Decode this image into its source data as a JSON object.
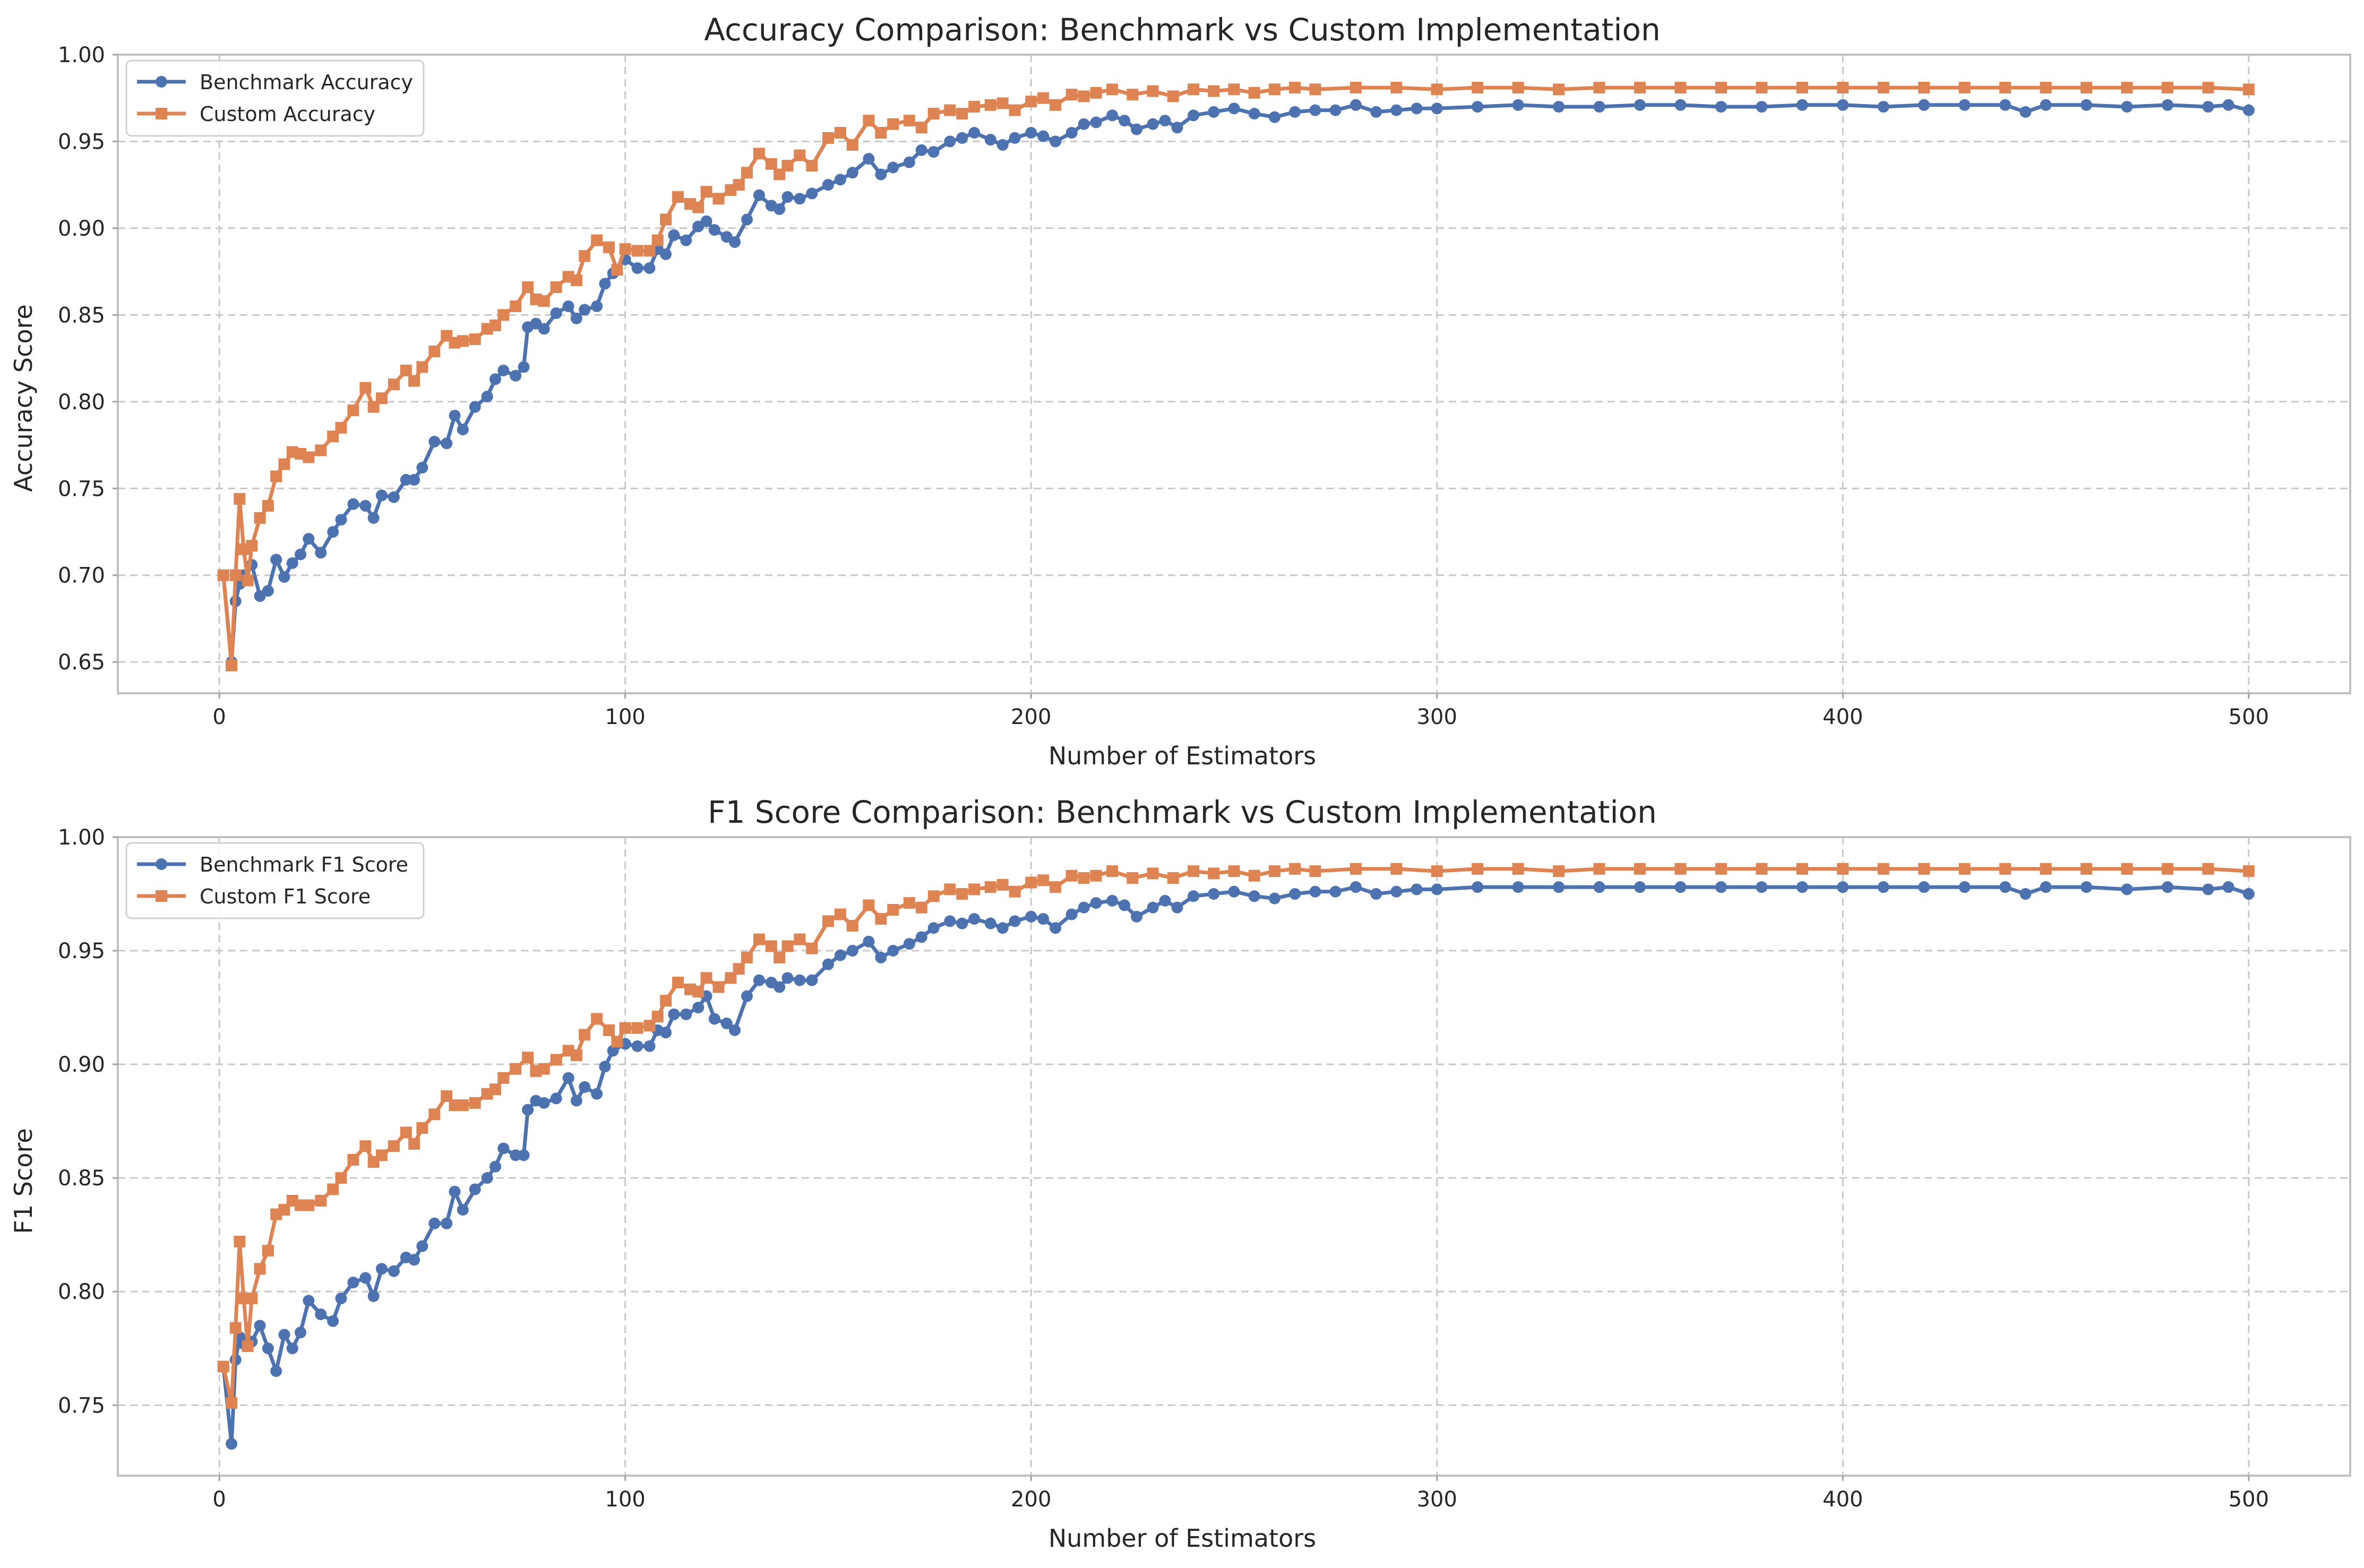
{
  "colors": {
    "benchmark": "#4c72b0",
    "custom": "#dd8452"
  },
  "chart_data": [
    {
      "type": "line",
      "title": "Accuracy Comparison: Benchmark vs Custom Implementation",
      "xlabel": "Number of Estimators",
      "ylabel": "Accuracy Score",
      "xlim": [
        -25,
        525
      ],
      "ylim": [
        0.632,
        1.0
      ],
      "xticks": [
        0,
        100,
        200,
        300,
        400,
        500
      ],
      "xtick_labels": [
        "0",
        "100",
        "200",
        "300",
        "400",
        "500"
      ],
      "yticks": [
        0.65,
        0.7,
        0.75,
        0.8,
        0.85,
        0.9,
        0.95,
        1.0
      ],
      "ytick_labels": [
        "0.65",
        "0.70",
        "0.75",
        "0.80",
        "0.85",
        "0.90",
        "0.95",
        "1.00"
      ],
      "grid": true,
      "legend_position": "top-left",
      "series": [
        {
          "name": "Benchmark Accuracy",
          "marker": "circle",
          "color_key": "benchmark",
          "x": [
            1,
            3,
            4,
            5,
            6,
            8,
            10,
            12,
            14,
            16,
            18,
            20,
            22,
            25,
            28,
            30,
            33,
            36,
            38,
            40,
            43,
            46,
            48,
            50,
            53,
            56,
            58,
            60,
            63,
            66,
            68,
            70,
            73,
            75,
            76,
            78,
            80,
            83,
            86,
            88,
            90,
            93,
            95,
            97,
            100,
            103,
            106,
            108,
            110,
            112,
            115,
            118,
            120,
            122,
            125,
            127,
            130,
            133,
            136,
            138,
            140,
            143,
            146,
            150,
            153,
            156,
            160,
            163,
            166,
            170,
            173,
            176,
            180,
            183,
            186,
            190,
            193,
            196,
            200,
            203,
            206,
            210,
            213,
            216,
            220,
            223,
            226,
            230,
            233,
            236,
            240,
            245,
            250,
            255,
            260,
            265,
            270,
            275,
            280,
            285,
            290,
            295,
            300,
            310,
            320,
            330,
            340,
            350,
            360,
            370,
            380,
            390,
            400,
            410,
            420,
            430,
            440,
            445,
            450,
            460,
            470,
            480,
            490,
            495,
            500
          ],
          "y": [
            0.7,
            0.65,
            0.685,
            0.695,
            0.7,
            0.706,
            0.688,
            0.691,
            0.709,
            0.699,
            0.707,
            0.712,
            0.721,
            0.713,
            0.725,
            0.732,
            0.741,
            0.74,
            0.733,
            0.746,
            0.745,
            0.755,
            0.755,
            0.762,
            0.777,
            0.776,
            0.792,
            0.784,
            0.797,
            0.803,
            0.813,
            0.818,
            0.815,
            0.82,
            0.843,
            0.845,
            0.842,
            0.851,
            0.855,
            0.848,
            0.853,
            0.855,
            0.868,
            0.874,
            0.882,
            0.877,
            0.877,
            0.888,
            0.885,
            0.896,
            0.893,
            0.901,
            0.904,
            0.899,
            0.895,
            0.892,
            0.905,
            0.919,
            0.913,
            0.911,
            0.918,
            0.917,
            0.92,
            0.925,
            0.928,
            0.932,
            0.94,
            0.931,
            0.935,
            0.938,
            0.945,
            0.944,
            0.95,
            0.952,
            0.955,
            0.951,
            0.948,
            0.952,
            0.955,
            0.953,
            0.95,
            0.955,
            0.96,
            0.961,
            0.965,
            0.962,
            0.957,
            0.96,
            0.962,
            0.958,
            0.965,
            0.967,
            0.969,
            0.966,
            0.964,
            0.967,
            0.968,
            0.968,
            0.971,
            0.967,
            0.968,
            0.969,
            0.969,
            0.97,
            0.971,
            0.97,
            0.97,
            0.971,
            0.971,
            0.97,
            0.97,
            0.971,
            0.971,
            0.97,
            0.971,
            0.971,
            0.971,
            0.967,
            0.971,
            0.971,
            0.97,
            0.971,
            0.97,
            0.971,
            0.968
          ]
        },
        {
          "name": "Custom Accuracy",
          "marker": "square",
          "color_key": "custom",
          "x": [
            1,
            3,
            4,
            5,
            6,
            7,
            8,
            10,
            12,
            14,
            16,
            18,
            20,
            22,
            25,
            28,
            30,
            33,
            36,
            38,
            40,
            43,
            46,
            48,
            50,
            53,
            56,
            58,
            60,
            63,
            66,
            68,
            70,
            73,
            76,
            78,
            80,
            83,
            86,
            88,
            90,
            93,
            96,
            98,
            100,
            103,
            106,
            108,
            110,
            113,
            116,
            118,
            120,
            123,
            126,
            128,
            130,
            133,
            136,
            138,
            140,
            143,
            146,
            150,
            153,
            156,
            160,
            163,
            166,
            170,
            173,
            176,
            180,
            183,
            186,
            190,
            193,
            196,
            200,
            203,
            206,
            210,
            213,
            216,
            220,
            225,
            230,
            235,
            240,
            245,
            250,
            255,
            260,
            265,
            270,
            280,
            290,
            300,
            310,
            320,
            330,
            340,
            350,
            360,
            370,
            380,
            390,
            400,
            410,
            420,
            430,
            440,
            450,
            460,
            470,
            480,
            490,
            500
          ],
          "y": [
            0.7,
            0.648,
            0.7,
            0.744,
            0.715,
            0.697,
            0.717,
            0.733,
            0.74,
            0.757,
            0.764,
            0.771,
            0.77,
            0.768,
            0.772,
            0.78,
            0.785,
            0.795,
            0.808,
            0.797,
            0.802,
            0.81,
            0.818,
            0.812,
            0.82,
            0.829,
            0.838,
            0.834,
            0.835,
            0.836,
            0.842,
            0.844,
            0.85,
            0.855,
            0.866,
            0.859,
            0.858,
            0.866,
            0.872,
            0.87,
            0.884,
            0.893,
            0.889,
            0.876,
            0.888,
            0.887,
            0.887,
            0.893,
            0.905,
            0.918,
            0.914,
            0.912,
            0.921,
            0.917,
            0.922,
            0.925,
            0.932,
            0.943,
            0.937,
            0.931,
            0.936,
            0.942,
            0.936,
            0.952,
            0.955,
            0.948,
            0.962,
            0.955,
            0.96,
            0.962,
            0.958,
            0.966,
            0.968,
            0.966,
            0.97,
            0.971,
            0.972,
            0.968,
            0.973,
            0.975,
            0.971,
            0.977,
            0.976,
            0.978,
            0.98,
            0.977,
            0.979,
            0.976,
            0.98,
            0.979,
            0.98,
            0.978,
            0.98,
            0.981,
            0.98,
            0.981,
            0.981,
            0.98,
            0.981,
            0.981,
            0.98,
            0.981,
            0.981,
            0.981,
            0.981,
            0.981,
            0.981,
            0.981,
            0.981,
            0.981,
            0.981,
            0.981,
            0.981,
            0.981,
            0.981,
            0.981,
            0.981,
            0.98
          ]
        }
      ]
    },
    {
      "type": "line",
      "title": "F1 Score Comparison: Benchmark vs Custom Implementation",
      "xlabel": "Number of Estimators",
      "ylabel": "F1 Score",
      "xlim": [
        -25,
        525
      ],
      "ylim": [
        0.719,
        1.0
      ],
      "xticks": [
        0,
        100,
        200,
        300,
        400,
        500
      ],
      "xtick_labels": [
        "0",
        "100",
        "200",
        "300",
        "400",
        "500"
      ],
      "yticks": [
        0.75,
        0.8,
        0.85,
        0.9,
        0.95,
        1.0
      ],
      "ytick_labels": [
        "0.75",
        "0.80",
        "0.85",
        "0.90",
        "0.95",
        "1.00"
      ],
      "grid": true,
      "legend_position": "top-left",
      "series": [
        {
          "name": "Benchmark F1 Score",
          "marker": "circle",
          "color_key": "benchmark",
          "x": [
            1,
            3,
            4,
            5,
            6,
            8,
            10,
            12,
            14,
            16,
            18,
            20,
            22,
            25,
            28,
            30,
            33,
            36,
            38,
            40,
            43,
            46,
            48,
            50,
            53,
            56,
            58,
            60,
            63,
            66,
            68,
            70,
            73,
            75,
            76,
            78,
            80,
            83,
            86,
            88,
            90,
            93,
            95,
            97,
            100,
            103,
            106,
            108,
            110,
            112,
            115,
            118,
            120,
            122,
            125,
            127,
            130,
            133,
            136,
            138,
            140,
            143,
            146,
            150,
            153,
            156,
            160,
            163,
            166,
            170,
            173,
            176,
            180,
            183,
            186,
            190,
            193,
            196,
            200,
            203,
            206,
            210,
            213,
            216,
            220,
            223,
            226,
            230,
            233,
            236,
            240,
            245,
            250,
            255,
            260,
            265,
            270,
            275,
            280,
            285,
            290,
            295,
            300,
            310,
            320,
            330,
            340,
            350,
            360,
            370,
            380,
            390,
            400,
            410,
            420,
            430,
            440,
            445,
            450,
            460,
            470,
            480,
            490,
            495,
            500
          ],
          "y": [
            0.767,
            0.733,
            0.77,
            0.78,
            0.777,
            0.778,
            0.785,
            0.775,
            0.765,
            0.781,
            0.775,
            0.782,
            0.796,
            0.79,
            0.787,
            0.797,
            0.804,
            0.806,
            0.798,
            0.81,
            0.809,
            0.815,
            0.814,
            0.82,
            0.83,
            0.83,
            0.844,
            0.836,
            0.845,
            0.85,
            0.855,
            0.863,
            0.86,
            0.86,
            0.88,
            0.884,
            0.883,
            0.885,
            0.894,
            0.884,
            0.89,
            0.887,
            0.899,
            0.906,
            0.909,
            0.908,
            0.908,
            0.915,
            0.914,
            0.922,
            0.922,
            0.925,
            0.93,
            0.92,
            0.918,
            0.915,
            0.93,
            0.937,
            0.936,
            0.934,
            0.938,
            0.937,
            0.937,
            0.944,
            0.948,
            0.95,
            0.954,
            0.947,
            0.95,
            0.953,
            0.956,
            0.96,
            0.963,
            0.962,
            0.964,
            0.962,
            0.96,
            0.963,
            0.965,
            0.964,
            0.96,
            0.966,
            0.969,
            0.971,
            0.972,
            0.97,
            0.965,
            0.969,
            0.972,
            0.969,
            0.974,
            0.975,
            0.976,
            0.974,
            0.973,
            0.975,
            0.976,
            0.976,
            0.978,
            0.975,
            0.976,
            0.977,
            0.977,
            0.978,
            0.978,
            0.978,
            0.978,
            0.978,
            0.978,
            0.978,
            0.978,
            0.978,
            0.978,
            0.978,
            0.978,
            0.978,
            0.978,
            0.975,
            0.978,
            0.978,
            0.977,
            0.978,
            0.977,
            0.978,
            0.975
          ]
        },
        {
          "name": "Custom F1 Score",
          "marker": "square",
          "color_key": "custom",
          "x": [
            1,
            3,
            4,
            5,
            6,
            7,
            8,
            10,
            12,
            14,
            16,
            18,
            20,
            22,
            25,
            28,
            30,
            33,
            36,
            38,
            40,
            43,
            46,
            48,
            50,
            53,
            56,
            58,
            60,
            63,
            66,
            68,
            70,
            73,
            76,
            78,
            80,
            83,
            86,
            88,
            90,
            93,
            96,
            98,
            100,
            103,
            106,
            108,
            110,
            113,
            116,
            118,
            120,
            123,
            126,
            128,
            130,
            133,
            136,
            138,
            140,
            143,
            146,
            150,
            153,
            156,
            160,
            163,
            166,
            170,
            173,
            176,
            180,
            183,
            186,
            190,
            193,
            196,
            200,
            203,
            206,
            210,
            213,
            216,
            220,
            225,
            230,
            235,
            240,
            245,
            250,
            255,
            260,
            265,
            270,
            280,
            290,
            300,
            310,
            320,
            330,
            340,
            350,
            360,
            370,
            380,
            390,
            400,
            410,
            420,
            430,
            440,
            450,
            460,
            470,
            480,
            490,
            500
          ],
          "y": [
            0.767,
            0.751,
            0.784,
            0.822,
            0.797,
            0.776,
            0.797,
            0.81,
            0.818,
            0.834,
            0.836,
            0.84,
            0.838,
            0.838,
            0.84,
            0.845,
            0.85,
            0.858,
            0.864,
            0.857,
            0.86,
            0.864,
            0.87,
            0.865,
            0.872,
            0.878,
            0.886,
            0.882,
            0.882,
            0.883,
            0.887,
            0.889,
            0.894,
            0.898,
            0.903,
            0.897,
            0.898,
            0.902,
            0.906,
            0.904,
            0.913,
            0.92,
            0.915,
            0.91,
            0.916,
            0.916,
            0.917,
            0.921,
            0.928,
            0.936,
            0.933,
            0.932,
            0.938,
            0.934,
            0.938,
            0.942,
            0.947,
            0.955,
            0.952,
            0.947,
            0.952,
            0.955,
            0.951,
            0.963,
            0.966,
            0.961,
            0.97,
            0.964,
            0.968,
            0.971,
            0.969,
            0.974,
            0.977,
            0.975,
            0.977,
            0.978,
            0.979,
            0.976,
            0.98,
            0.981,
            0.978,
            0.983,
            0.982,
            0.983,
            0.985,
            0.982,
            0.984,
            0.982,
            0.985,
            0.984,
            0.985,
            0.983,
            0.985,
            0.986,
            0.985,
            0.986,
            0.986,
            0.985,
            0.986,
            0.986,
            0.985,
            0.986,
            0.986,
            0.986,
            0.986,
            0.986,
            0.986,
            0.986,
            0.986,
            0.986,
            0.986,
            0.986,
            0.986,
            0.986,
            0.986,
            0.986,
            0.986,
            0.985
          ]
        }
      ]
    }
  ]
}
